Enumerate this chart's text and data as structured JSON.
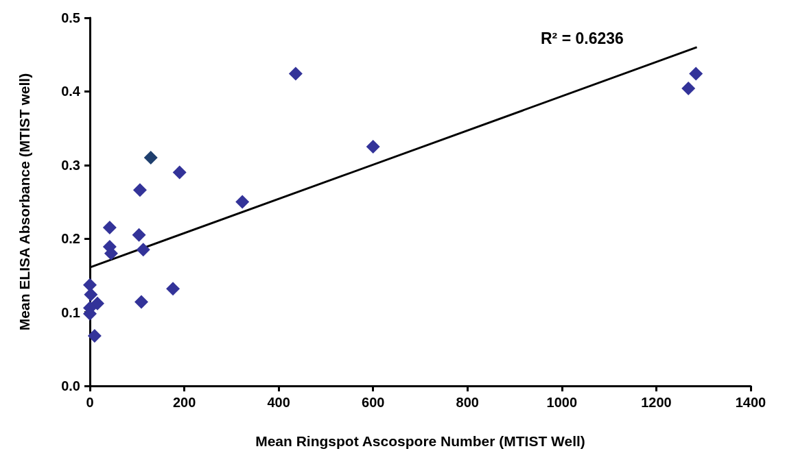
{
  "chart_data": {
    "type": "scatter",
    "xlabel": "Mean Ringspot Ascospore Number (MTIST Well)",
    "ylabel": "Mean ELISA Absorbance (MTIST well)",
    "xlim": [
      0,
      1400
    ],
    "xticks": [
      0,
      200,
      400,
      600,
      800,
      1000,
      1200,
      1400
    ],
    "ylim": [
      0,
      0.5
    ],
    "yticks": [
      {
        "value": 0,
        "label": "0.0"
      },
      0.1,
      0.2,
      0.3,
      0.4,
      0.5
    ],
    "grid": false,
    "marker": "diamond",
    "annotations": [
      "R² = 0.6236"
    ],
    "series": [
      {
        "color": "#333399",
        "colors": [
          "#333399",
          "#333399",
          "#333399",
          "#333399",
          "#333399",
          "#333399",
          "#333399",
          "#333399",
          "#333399",
          "#333399",
          "#333399",
          "#333399",
          "#333399",
          "#1f3f6e",
          "#333399",
          "#333399",
          "#333399",
          "#333399",
          "#333399",
          "#333399",
          "#333399"
        ],
        "x": [
          42,
          104,
          42,
          45,
          113,
          0,
          2,
          16,
          0,
          0,
          176,
          109,
          10,
          129,
          106,
          190,
          323,
          436,
          600,
          1268,
          1284
        ],
        "values": [
          0.215,
          0.205,
          0.189,
          0.18,
          0.185,
          0.137,
          0.124,
          0.112,
          0.106,
          0.098,
          0.132,
          0.114,
          0.068,
          0.31,
          0.266,
          0.29,
          0.25,
          0.424,
          0.325,
          0.404,
          0.424
        ]
      },
      {
        "type": "line",
        "color": "#000000",
        "marker": "none",
        "line_style": "solid",
        "x": [
          0,
          1286
        ],
        "values": [
          0.161,
          0.46
        ]
      }
    ]
  }
}
